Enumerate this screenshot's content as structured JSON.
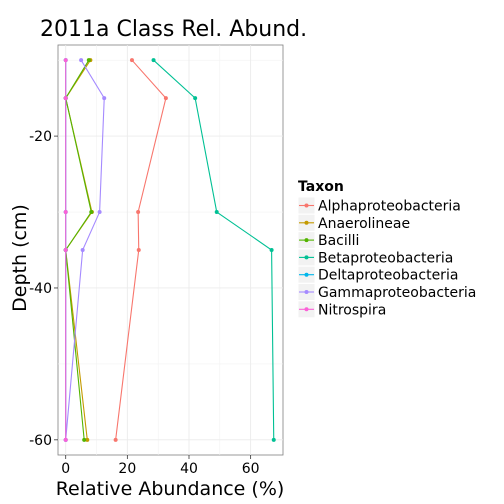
{
  "chart_data": {
    "type": "line",
    "title": "2011a Class Rel. Abund.",
    "xlabel": "Relative Abundance (%)",
    "ylabel": "Depth (cm)",
    "xlim": [
      -2.5,
      70.5
    ],
    "ylim": [
      -62,
      -8
    ],
    "x_ticks": [
      0,
      20,
      40,
      60
    ],
    "y_ticks": [
      -20,
      -40,
      -60
    ],
    "grid": true,
    "legend_title": "Taxon",
    "legend_position": "right",
    "depths": [
      -10,
      -15,
      -30,
      -35,
      -60
    ],
    "series": [
      {
        "name": "Alphaproteobacteria",
        "color": "#F8766D",
        "x": [
          21.5,
          32.5,
          23.5,
          23.7,
          16.2
        ]
      },
      {
        "name": "Anaerolineae",
        "color": "#C49A00",
        "x": [
          8.0,
          0.0,
          8.5,
          0.0,
          7.0
        ]
      },
      {
        "name": "Bacilli",
        "color": "#53B400",
        "x": [
          7.5,
          0.0,
          8.3,
          0.0,
          6.0
        ]
      },
      {
        "name": "Betaproteobacteria",
        "color": "#00C094",
        "x": [
          28.5,
          42.0,
          49.0,
          66.8,
          67.5
        ]
      },
      {
        "name": "Deltaproteobacteria",
        "color": "#00B6EB",
        "x": [
          0.0,
          0.0,
          0.0,
          0.0,
          0.0
        ]
      },
      {
        "name": "Gammaproteobacteria",
        "color": "#A58AFF",
        "x": [
          5.0,
          12.5,
          11.0,
          5.5,
          0.0
        ]
      },
      {
        "name": "Nitrospira",
        "color": "#FB61D7",
        "x": [
          0.0,
          0.0,
          0.0,
          0.0,
          0.0
        ]
      }
    ]
  }
}
